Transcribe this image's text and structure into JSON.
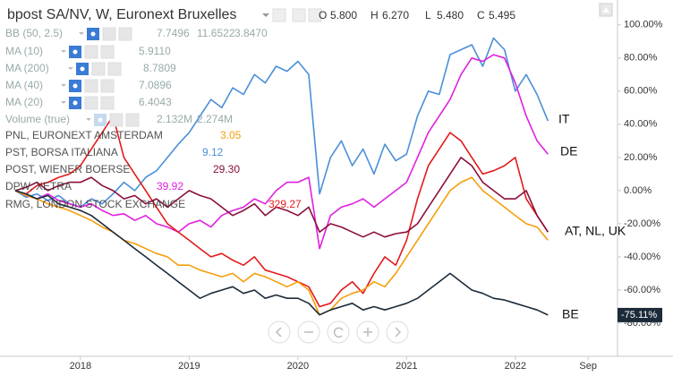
{
  "chart_data": {
    "type": "line",
    "title": "bpost SA/NV, W, Euronext Bruxelles",
    "ohlc": [
      [
        "O",
        "5.800"
      ],
      [
        "H",
        "6.270"
      ],
      [
        "L",
        "5.480"
      ],
      [
        "C",
        "5.495"
      ]
    ],
    "indicators": [
      {
        "name": "BB (50, 2.5)",
        "values": [
          "7.7496",
          "11.6522",
          "3.8470"
        ]
      },
      {
        "name": "MA (10)",
        "values": [
          "5.9110"
        ]
      },
      {
        "name": "MA (200)",
        "values": [
          "8.7809"
        ]
      },
      {
        "name": "MA (40)",
        "values": [
          "7.0896"
        ]
      },
      {
        "name": "MA (20)",
        "values": [
          "6.4043"
        ]
      },
      {
        "name": "Volume (true)",
        "values": [
          "2.132M",
          "2.274M"
        ]
      }
    ],
    "compares": [
      {
        "name": "PNL, EURONEXT AMSTERDAM",
        "value": "3.05",
        "color": "#f59e0b"
      },
      {
        "name": "PST, BORSA ITALIANA",
        "value": "9.12",
        "color": "#4a8fd9"
      },
      {
        "name": "POST, WIENER BOERSE",
        "value": "29.30",
        "color": "#8a0f3c"
      },
      {
        "name": "DPW, XETRA",
        "value": "39.92",
        "color": "#e020e0"
      },
      {
        "name": "RMG, LONDON STOCK EXCHANGE",
        "value": "329.27",
        "color": "#e31a1a"
      }
    ],
    "annotations": [
      "IT",
      "DE",
      "AT, NL, UK",
      "BE"
    ],
    "x": [
      2017.4,
      2017.5,
      2017.6,
      2017.7,
      2017.8,
      2017.9,
      2018.0,
      2018.1,
      2018.2,
      2018.3,
      2018.4,
      2018.5,
      2018.6,
      2018.7,
      2018.8,
      2018.9,
      2019.0,
      2019.1,
      2019.2,
      2019.3,
      2019.4,
      2019.5,
      2019.6,
      2019.7,
      2019.8,
      2019.9,
      2020.0,
      2020.1,
      2020.2,
      2020.3,
      2020.4,
      2020.5,
      2020.6,
      2020.7,
      2020.8,
      2020.9,
      2021.0,
      2021.1,
      2021.2,
      2021.3,
      2021.4,
      2021.5,
      2021.6,
      2021.7,
      2021.8,
      2021.9,
      2022.0,
      2022.1,
      2022.2,
      2022.3
    ],
    "series": [
      {
        "color": "#4a8fd9",
        "values": [
          0,
          -4,
          -2,
          -6,
          -3,
          -8,
          -10,
          -5,
          -8,
          -2,
          5,
          0,
          8,
          12,
          20,
          28,
          35,
          45,
          55,
          50,
          62,
          58,
          70,
          65,
          75,
          72,
          78,
          70,
          -2,
          20,
          30,
          15,
          25,
          10,
          28,
          18,
          22,
          45,
          60,
          58,
          82,
          85,
          88,
          75,
          92,
          85,
          60,
          70,
          58,
          42
        ]
      },
      {
        "color": "#e020e0",
        "values": [
          0,
          -3,
          -5,
          -2,
          -6,
          -8,
          -10,
          -8,
          -12,
          -15,
          -14,
          -18,
          -15,
          -20,
          -22,
          -25,
          -20,
          -18,
          -22,
          -15,
          -12,
          -10,
          -5,
          -8,
          0,
          5,
          5,
          8,
          -35,
          -15,
          -10,
          -8,
          -5,
          -10,
          -5,
          0,
          5,
          20,
          35,
          45,
          55,
          70,
          80,
          78,
          82,
          80,
          65,
          45,
          30,
          22
        ]
      },
      {
        "color": "#e31a1a",
        "values": [
          0,
          -2,
          3,
          5,
          8,
          10,
          15,
          25,
          35,
          45,
          20,
          10,
          0,
          -10,
          -20,
          -25,
          -30,
          -35,
          -40,
          -38,
          -42,
          -45,
          -40,
          -48,
          -50,
          -52,
          -55,
          -58,
          -70,
          -68,
          -60,
          -55,
          -62,
          -50,
          -40,
          -45,
          -30,
          -5,
          15,
          25,
          35,
          30,
          20,
          10,
          12,
          15,
          20,
          -5,
          -15,
          -25
        ]
      },
      {
        "color": "#f59e0b",
        "values": [
          0,
          -3,
          -5,
          -8,
          -10,
          -12,
          -15,
          -18,
          -22,
          -25,
          -30,
          -32,
          -35,
          -38,
          -40,
          -45,
          -45,
          -48,
          -50,
          -52,
          -50,
          -55,
          -50,
          -52,
          -55,
          -58,
          -55,
          -60,
          -75,
          -72,
          -65,
          -62,
          -60,
          -55,
          -58,
          -50,
          -40,
          -30,
          -20,
          -10,
          0,
          5,
          8,
          0,
          -5,
          -10,
          -15,
          -20,
          -22,
          -30
        ]
      },
      {
        "color": "#8a0f3c",
        "values": [
          0,
          2,
          5,
          0,
          3,
          5,
          5,
          8,
          3,
          0,
          -5,
          -3,
          -8,
          -5,
          -10,
          -5,
          0,
          -3,
          -5,
          -10,
          -15,
          -12,
          -8,
          -15,
          -10,
          -12,
          -15,
          -10,
          -25,
          -20,
          -22,
          -25,
          -28,
          -25,
          -28,
          -26,
          -25,
          -20,
          -10,
          0,
          10,
          20,
          15,
          5,
          0,
          -5,
          -5,
          0,
          -15,
          -25
        ]
      },
      {
        "color": "#1c2b3a",
        "last_value_label": "-75.11%",
        "values": [
          0,
          -2,
          -5,
          -3,
          -8,
          -10,
          -12,
          -15,
          -20,
          -25,
          -30,
          -35,
          -40,
          -45,
          -50,
          -55,
          -60,
          -65,
          -62,
          -60,
          -58,
          -62,
          -60,
          -65,
          -63,
          -65,
          -65,
          -68,
          -75,
          -72,
          -70,
          -68,
          -72,
          -70,
          -72,
          -70,
          -68,
          -65,
          -60,
          -55,
          -50,
          -55,
          -60,
          -62,
          -65,
          -66,
          -68,
          -70,
          -72,
          -75.11
        ]
      }
    ],
    "xlim": [
      2017.26,
      2022.94
    ],
    "xticks": [
      2018,
      2019,
      2020,
      2021,
      2022,
      {
        "value": 2022.67,
        "label": "Sep"
      }
    ],
    "ylim": [
      -100,
      115
    ],
    "yticks": [
      {
        "value": 100,
        "label": "100.00%"
      },
      {
        "value": 80,
        "label": "80.00%"
      },
      {
        "value": 60,
        "label": "60.00%"
      },
      {
        "value": 40,
        "label": "40.00%"
      },
      {
        "value": 20,
        "label": "20.00%"
      },
      {
        "value": 0,
        "label": "0.00%"
      },
      {
        "value": -20,
        "label": "-20.00%"
      },
      {
        "value": -40,
        "label": "-40.00%"
      },
      {
        "value": -60,
        "label": "-60.00%"
      },
      {
        "value": -80,
        "label": "-80.00%"
      }
    ],
    "grid": false
  }
}
